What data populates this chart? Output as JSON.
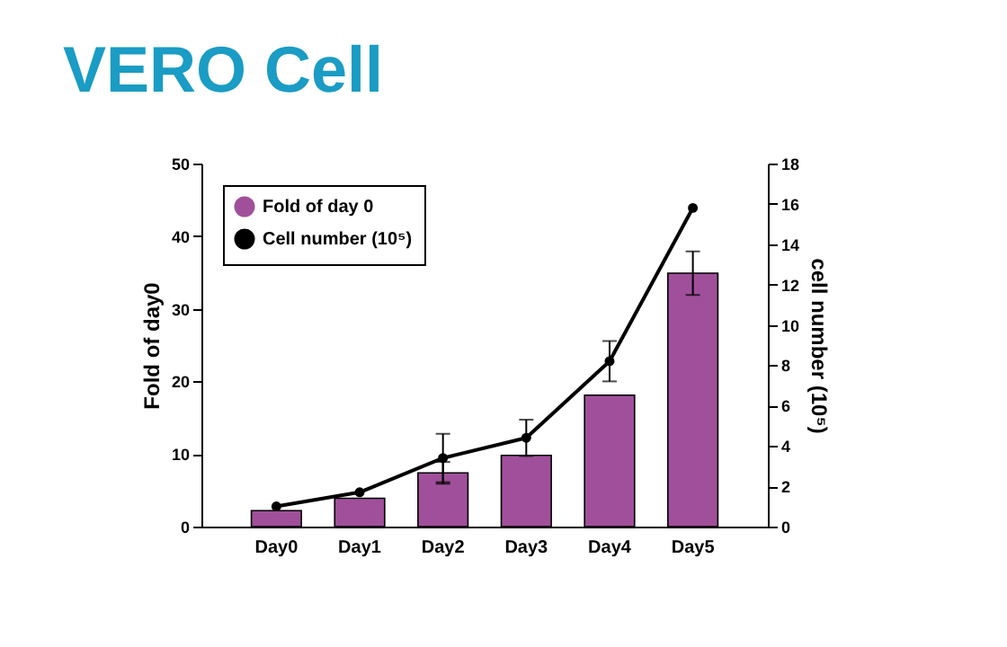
{
  "chart_data": {
    "type": "bar",
    "title": "VERO Cell",
    "ylabel": "Fold of day0",
    "y2label": "cell number (10⁵)",
    "categories": [
      "Day0",
      "Day1",
      "Day2",
      "Day3",
      "Day4",
      "Day5"
    ],
    "series": [
      {
        "name": "Fold of day 0",
        "color": "#a0509a",
        "values": [
          2.2,
          3.9,
          7.4,
          9.8,
          18.1,
          34.9
        ],
        "errors": [
          null,
          null,
          1.5,
          null,
          null,
          3
        ]
      },
      {
        "name": "Cell number (10⁵)",
        "type": "line",
        "axis": "y2",
        "color": "#000000",
        "values": [
          1.0,
          1.7,
          3.4,
          4.4,
          8.2,
          15.8
        ],
        "errors": [
          null,
          null,
          1.2,
          0.9,
          1.0,
          null
        ]
      }
    ],
    "ylim": [
      0,
      50
    ],
    "yticks": [
      0,
      10,
      20,
      30,
      40,
      50
    ],
    "y2lim": [
      0,
      18
    ],
    "y2ticks": [
      0,
      2,
      4,
      6,
      8,
      10,
      12,
      14,
      16,
      18
    ],
    "legend": "top left",
    "marker": "circle",
    "line_style": "solid",
    "grid": false
  }
}
